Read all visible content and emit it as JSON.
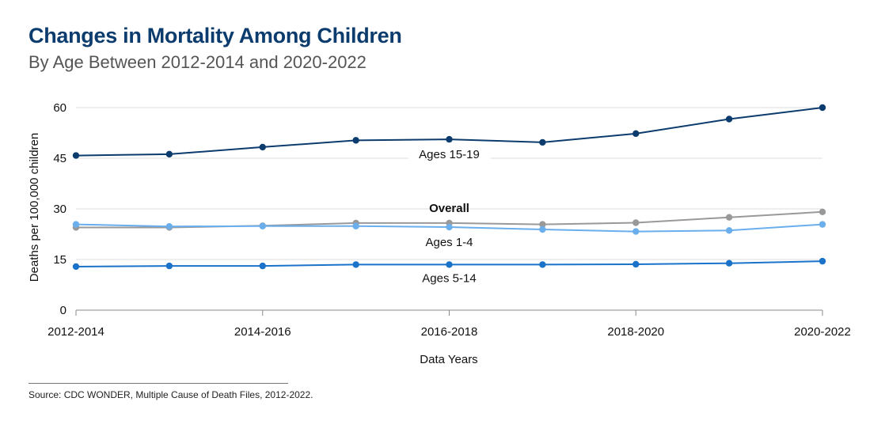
{
  "header": {
    "title": "Changes in Mortality Among Children",
    "subtitle": "By Age Between 2012-2014 and 2020-2022"
  },
  "footer": {
    "source": "Source: CDC WONDER, Multiple Cause of Death Files, 2012-2022."
  },
  "colors": {
    "title": "#0c3c6e",
    "ages_15_19": "#0c3c6e",
    "overall": "#999999",
    "ages_1_4": "#6aaeec",
    "ages_5_14": "#1a73c9",
    "gridline": "#dddddd",
    "axis": "#888888"
  },
  "chart_data": {
    "type": "line",
    "title": "Changes in Mortality Among Children",
    "subtitle": "By Age Between 2012-2014 and 2020-2022",
    "xlabel": "Data Years",
    "ylabel": "Deaths per 100,000 children",
    "ylim": [
      0,
      60
    ],
    "yticks": [
      0,
      15,
      30,
      45,
      60
    ],
    "x_tick_labels": [
      "2012-2014",
      "2014-2016",
      "2016-2018",
      "2018-2020",
      "2020-2022"
    ],
    "x": [
      0,
      1,
      2,
      3,
      4,
      5,
      6,
      7,
      8
    ],
    "x_tick_positions": [
      0,
      2,
      4,
      6,
      8
    ],
    "grid": true,
    "series": [
      {
        "name": "Ages 15-19",
        "bold": false,
        "color_key": "ages_15_19",
        "values": [
          45.8,
          46.2,
          48.3,
          50.3,
          50.6,
          49.7,
          52.3,
          56.6,
          60.0
        ]
      },
      {
        "name": "Overall",
        "bold": true,
        "color_key": "overall",
        "values": [
          24.5,
          24.5,
          25.0,
          25.8,
          25.8,
          25.4,
          25.9,
          27.5,
          29.1
        ]
      },
      {
        "name": "Ages 1-4",
        "bold": false,
        "color_key": "ages_1_4",
        "values": [
          25.4,
          24.8,
          24.9,
          24.9,
          24.6,
          23.9,
          23.3,
          23.6,
          25.4
        ]
      },
      {
        "name": "Ages 5-14",
        "bold": false,
        "color_key": "ages_5_14",
        "values": [
          12.9,
          13.1,
          13.1,
          13.5,
          13.5,
          13.5,
          13.6,
          13.9,
          14.5
        ]
      }
    ]
  }
}
